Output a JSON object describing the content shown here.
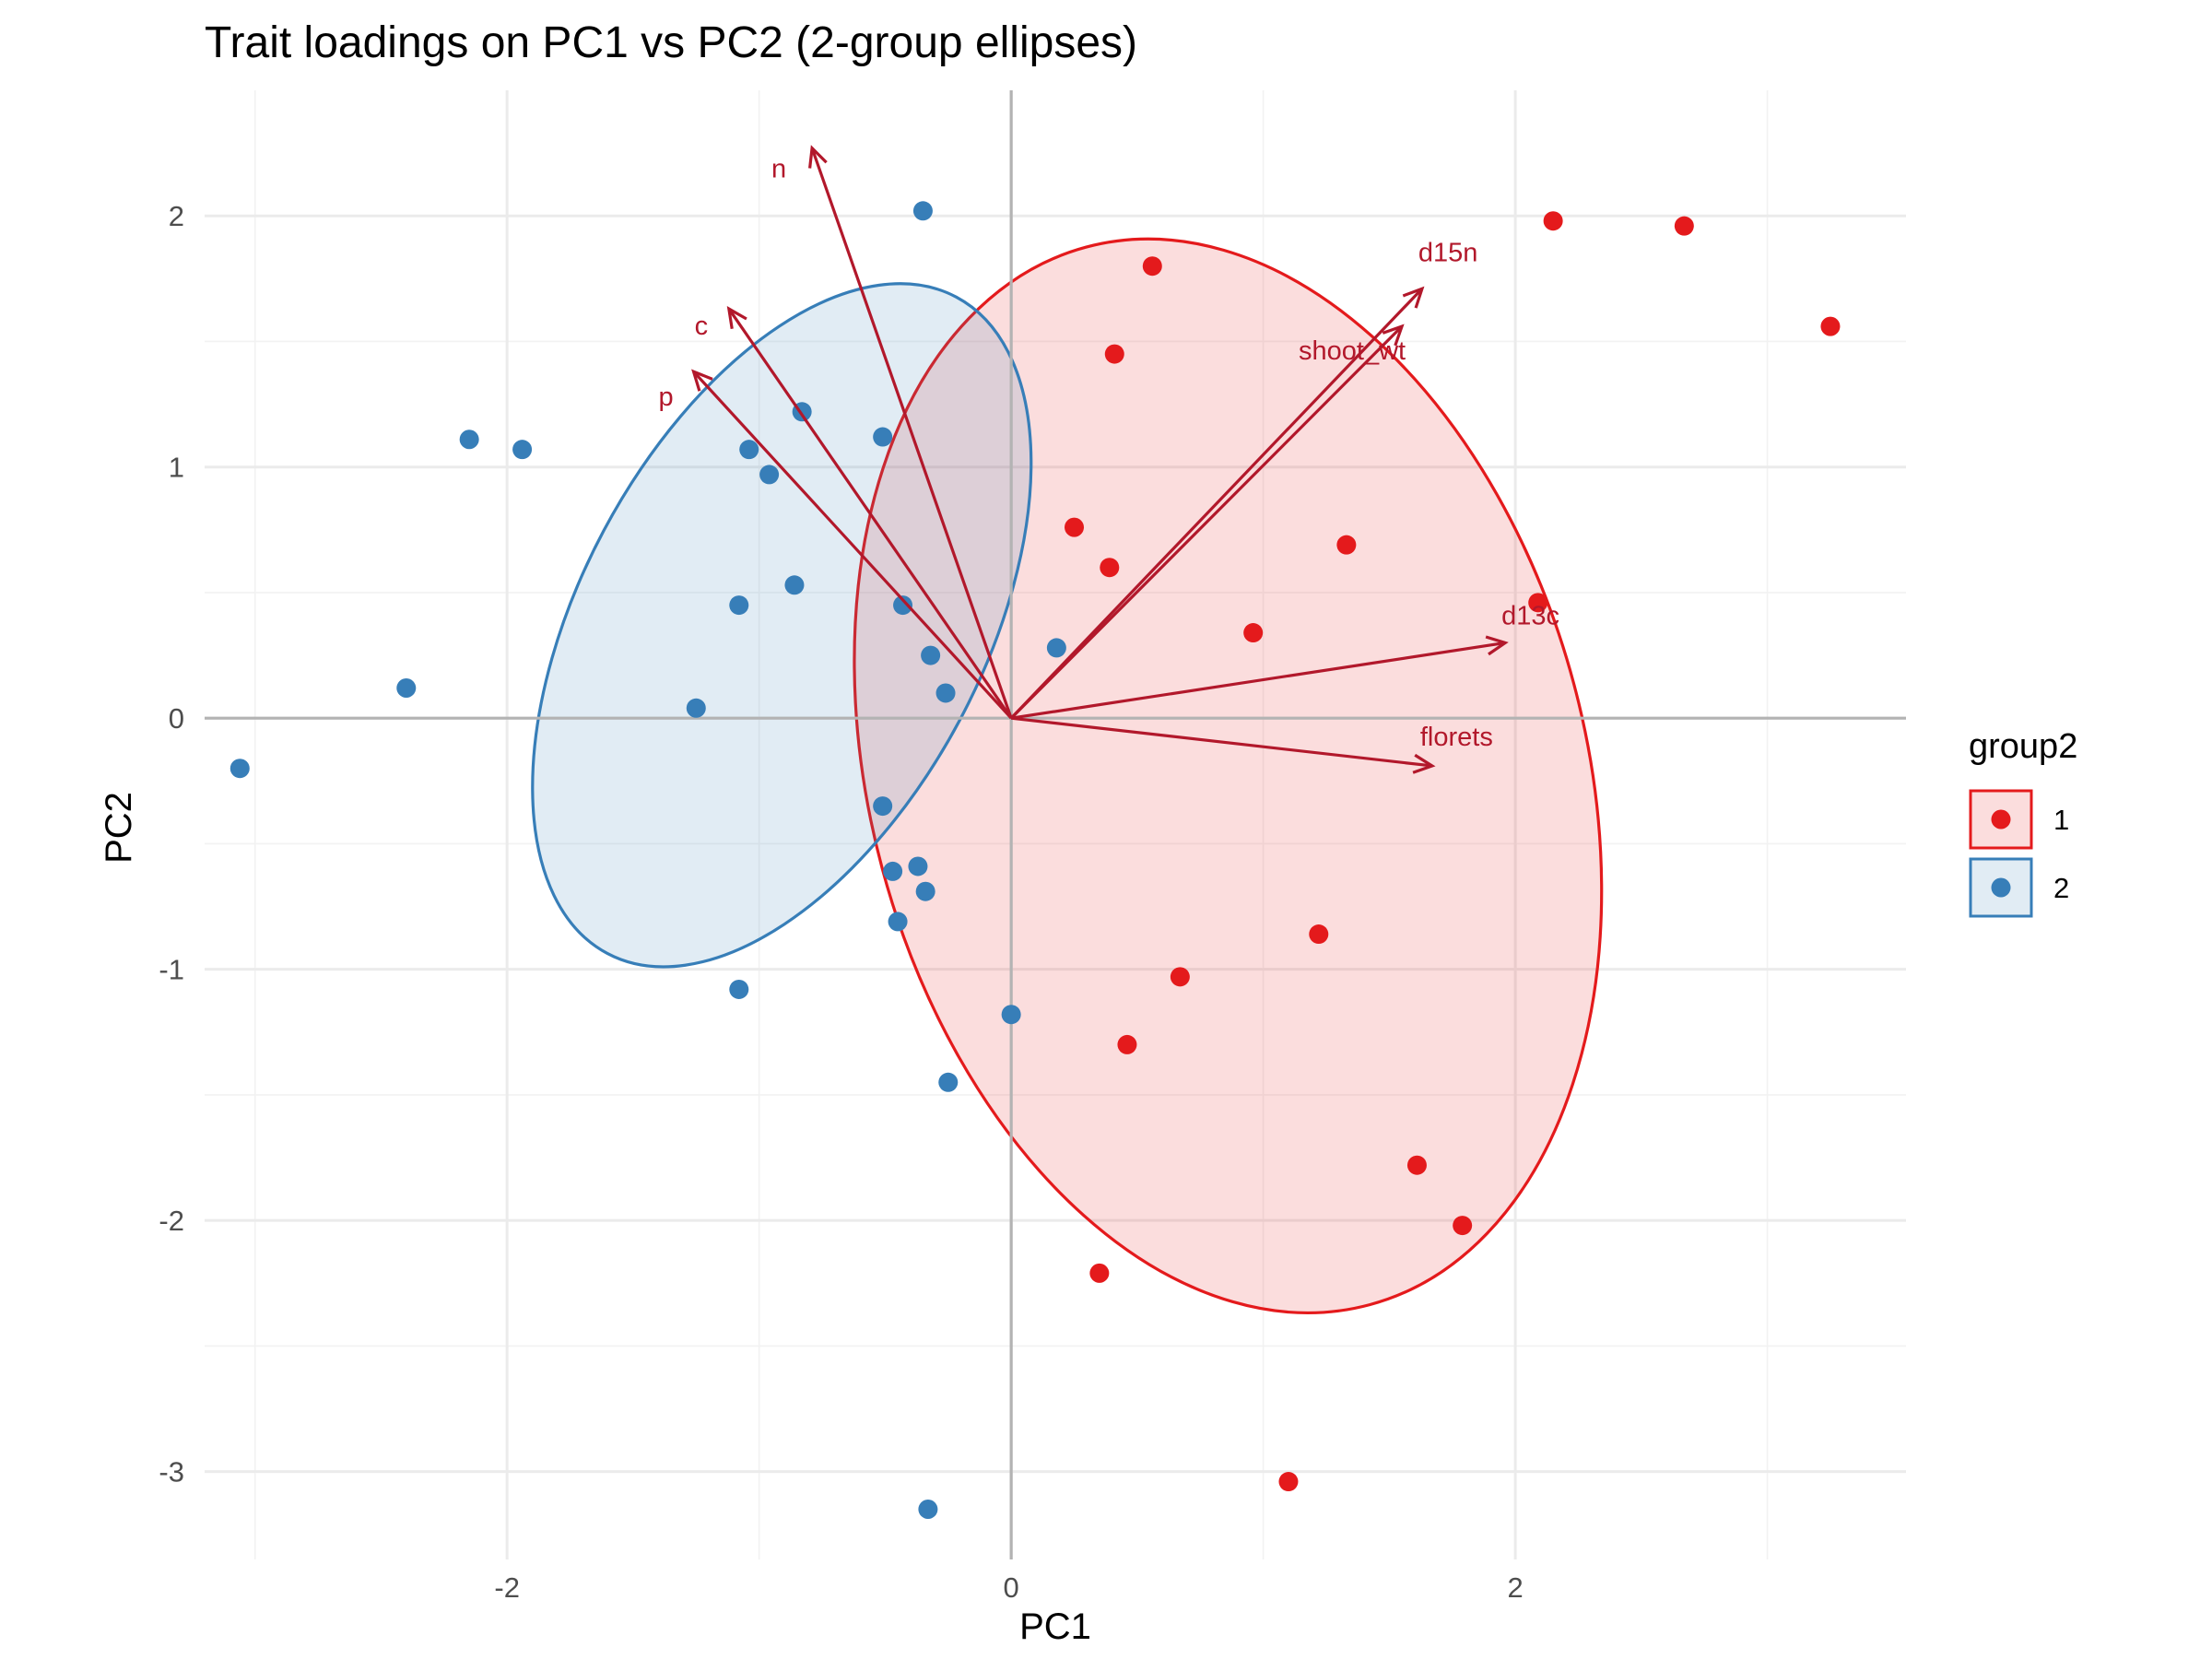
{
  "chart_data": {
    "type": "scatter",
    "title": "Trait loadings on PC1 vs PC2 (2-group ellipses)",
    "xlabel": "PC1",
    "ylabel": "PC2",
    "xlim": [
      -3.2,
      3.55
    ],
    "ylim": [
      -3.35,
      2.5
    ],
    "x_ticks": [
      -2,
      0,
      2
    ],
    "y_ticks": [
      -3,
      -2,
      -1,
      0,
      1,
      2
    ],
    "x_tick_labels": [
      "-2",
      "0",
      "2"
    ],
    "y_tick_labels": [
      "-3",
      "-2",
      "-1",
      "0",
      "1",
      "2"
    ],
    "grid": true,
    "reference_lines": {
      "x": 0,
      "y": 0
    },
    "legend": {
      "title": "group2",
      "position": "right",
      "entries": [
        {
          "label": "1",
          "color": "#e41a1c"
        },
        {
          "label": "2",
          "color": "#377eb8"
        }
      ]
    },
    "series": [
      {
        "name": "1",
        "color": "#e41a1c",
        "points": [
          {
            "x": 2.15,
            "y": 1.98
          },
          {
            "x": 2.67,
            "y": 1.96
          },
          {
            "x": 3.25,
            "y": 1.56
          },
          {
            "x": 0.56,
            "y": 1.8
          },
          {
            "x": 0.41,
            "y": 1.45
          },
          {
            "x": 0.25,
            "y": 0.76
          },
          {
            "x": 0.39,
            "y": 0.6
          },
          {
            "x": 1.33,
            "y": 0.69
          },
          {
            "x": 0.96,
            "y": 0.34
          },
          {
            "x": 2.09,
            "y": 0.46
          },
          {
            "x": 1.22,
            "y": -0.86
          },
          {
            "x": 0.67,
            "y": -1.03
          },
          {
            "x": 0.46,
            "y": -1.3
          },
          {
            "x": 1.61,
            "y": -1.78
          },
          {
            "x": 1.79,
            "y": -2.02
          },
          {
            "x": 0.35,
            "y": -2.21
          },
          {
            "x": 1.1,
            "y": -3.04
          }
        ]
      },
      {
        "name": "2",
        "color": "#377eb8",
        "points": [
          {
            "x": -0.35,
            "y": 2.02
          },
          {
            "x": -2.15,
            "y": 1.11
          },
          {
            "x": -1.94,
            "y": 1.07
          },
          {
            "x": -0.83,
            "y": 1.22
          },
          {
            "x": -0.51,
            "y": 1.12
          },
          {
            "x": -1.04,
            "y": 1.07
          },
          {
            "x": -0.96,
            "y": 0.97
          },
          {
            "x": -0.86,
            "y": 0.53
          },
          {
            "x": -1.08,
            "y": 0.45
          },
          {
            "x": -0.43,
            "y": 0.45
          },
          {
            "x": -0.32,
            "y": 0.25
          },
          {
            "x": -0.26,
            "y": 0.1
          },
          {
            "x": -1.25,
            "y": 0.04
          },
          {
            "x": -2.4,
            "y": 0.12
          },
          {
            "x": -3.06,
            "y": -0.2
          },
          {
            "x": 0.18,
            "y": 0.28
          },
          {
            "x": -0.51,
            "y": -0.35
          },
          {
            "x": -0.37,
            "y": -0.59
          },
          {
            "x": -0.47,
            "y": -0.61
          },
          {
            "x": -0.34,
            "y": -0.69
          },
          {
            "x": -0.45,
            "y": -0.81
          },
          {
            "x": -1.08,
            "y": -1.08
          },
          {
            "x": 0.0,
            "y": -1.18
          },
          {
            "x": -0.25,
            "y": -1.45
          },
          {
            "x": -0.33,
            "y": -3.15
          }
        ]
      }
    ],
    "ellipses": [
      {
        "group": "1",
        "color": "#e41a1c",
        "center": [
          0.86,
          -0.23
        ],
        "rx": 1.42,
        "ry": 2.18,
        "angle_deg": -15
      },
      {
        "group": "2",
        "color": "#377eb8",
        "center": [
          -0.91,
          0.37
        ],
        "rx": 0.8,
        "ry": 1.48,
        "angle_deg": 28
      }
    ],
    "loadings": {
      "color": "#b2182b",
      "vectors": [
        {
          "name": "n",
          "x": -0.79,
          "y": 2.27
        },
        {
          "name": "c",
          "x": -1.12,
          "y": 1.63
        },
        {
          "name": "p",
          "x": -1.26,
          "y": 1.38
        },
        {
          "name": "d15n",
          "x": 1.63,
          "y": 1.71
        },
        {
          "name": "shoot_wt",
          "x": 1.55,
          "y": 1.56
        },
        {
          "name": "d13c",
          "x": 1.96,
          "y": 0.3
        },
        {
          "name": "florets",
          "x": 1.67,
          "y": -0.19
        }
      ]
    }
  }
}
